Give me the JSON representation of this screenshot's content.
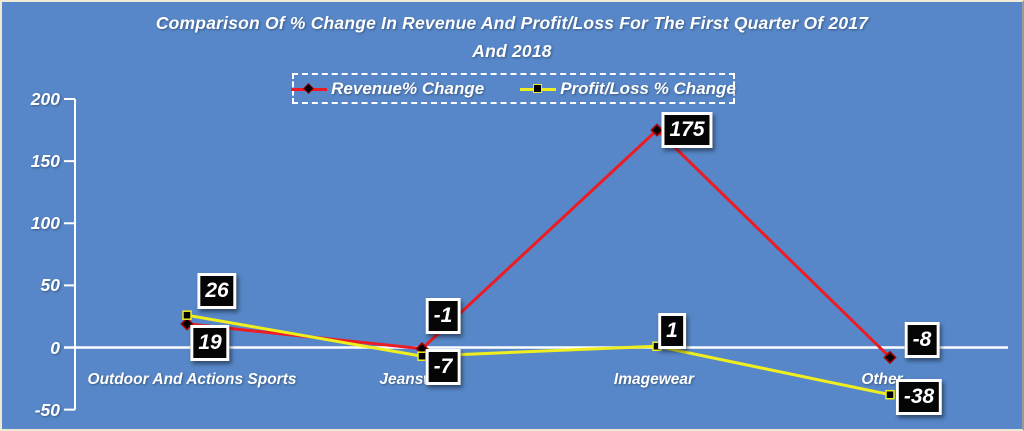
{
  "page": {
    "background_color": "#5787c8",
    "frame_border_color": "#efe9d6",
    "axis_color": "#ffffff",
    "text_color": "#ffffff"
  },
  "chart_data": {
    "type": "line",
    "title": "Comparison Of % Change In Revenue And Profit/Loss For The First Quarter Of 2017 And 2018",
    "title_lines": [
      "Comparison Of % Change In Revenue And Profit/Loss For The First Quarter Of 2017",
      "And 2018"
    ],
    "categories": [
      "Outdoor And Actions Sports",
      "Jeanswear",
      "Imagewear",
      "Other"
    ],
    "series": [
      {
        "name": "Revenue% Change",
        "color": "#ed1c24",
        "marker": "diamond",
        "marker_fill": "#000000",
        "marker_edge": "#aa0000",
        "values": [
          19,
          -1,
          175,
          -8
        ],
        "data_labels": [
          "19",
          "-1",
          "175",
          "-8"
        ]
      },
      {
        "name": "Profit/Loss % Change",
        "color": "#efee1f",
        "marker": "square",
        "marker_fill": "#000000",
        "marker_edge": "#efee1f",
        "values": [
          26,
          -7,
          1,
          -38
        ],
        "data_labels": [
          "26",
          "-7",
          "1",
          "-38"
        ]
      }
    ],
    "xlabel": "",
    "ylabel": "",
    "ylim": [
      -50,
      200
    ],
    "yticks": [
      200,
      150,
      100,
      50,
      0,
      -50
    ],
    "legend_position": "top-center",
    "legend_border": "dashed-white",
    "grid": "zero-line-only",
    "data_label_style": {
      "background": "#050505",
      "border": "#ffffff",
      "text": "#ffffff"
    }
  }
}
